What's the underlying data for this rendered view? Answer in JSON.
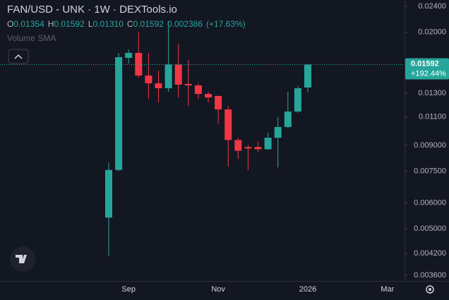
{
  "chart_data": {
    "type": "candlestick",
    "title": "FAN/USD - UNK · 1W · DEXTools.io",
    "legend_labels": [
      "O",
      "H",
      "L",
      "C"
    ],
    "legend_values": [
      "0.01354",
      "0.01592",
      "0.01310",
      "0.01592"
    ],
    "change": "0.002386",
    "change_pct": "(+17.63%)",
    "indicator": "Volume SMA",
    "categories": [
      null,
      null,
      "Sep",
      null,
      null,
      null,
      null,
      null,
      null,
      null,
      null,
      "Nov",
      null,
      null,
      null,
      null,
      null,
      null,
      null,
      null,
      "2026",
      null,
      null,
      null,
      null,
      null,
      null,
      null,
      "Mar"
    ],
    "open": [
      0.00541,
      0.00757,
      0.01669,
      0.01728,
      0.01473,
      0.01395,
      0.01347,
      0.01592,
      0.01388,
      0.01374,
      0.01294,
      0.01275,
      0.0116,
      0.00935,
      0.0089,
      0.0089,
      0.00876,
      0.0095,
      0.01025,
      0.01143,
      0.01354,
      null,
      null,
      null,
      null,
      null,
      null,
      null,
      null
    ],
    "high": [
      0.00798,
      0.01728,
      0.01771,
      0.02,
      0.01728,
      0.01525,
      0.02162,
      0.01843,
      0.01644,
      0.01395,
      0.01314,
      0.01281,
      0.01189,
      0.0095,
      0.00904,
      0.00926,
      0.00984,
      0.011,
      0.01314,
      0.01368,
      0.01592,
      null,
      null,
      null,
      null,
      null,
      null,
      null,
      null
    ],
    "low": [
      0.00414,
      0.0075,
      0.01603,
      0.01451,
      0.0125,
      0.01219,
      0.01314,
      0.01262,
      0.01189,
      0.0125,
      0.01219,
      0.0105,
      0.00775,
      0.00818,
      0.00757,
      0.00858,
      0.00872,
      0.00771,
      0.01015,
      0.01132,
      0.0131,
      null,
      null,
      null,
      null,
      null,
      null,
      null,
      null
    ],
    "close": [
      0.00757,
      0.01677,
      0.01728,
      0.01473,
      0.01395,
      0.01347,
      0.01592,
      0.01381,
      0.01374,
      0.01294,
      0.01262,
      0.0116,
      0.00935,
      0.00867,
      0.00881,
      0.00876,
      0.0095,
      0.01025,
      0.01143,
      0.01347,
      0.01592,
      null,
      null,
      null,
      null,
      null,
      null,
      null,
      null
    ],
    "up_color": "#26a69a",
    "down_color": "#f23645",
    "log_scale": true,
    "ylim": [
      0.00346,
      0.0251
    ],
    "yticks": [
      {
        "value": 0.0036,
        "label": "0.003600"
      },
      {
        "value": 0.0042,
        "label": "0.004200"
      },
      {
        "value": 0.005,
        "label": "0.005000"
      },
      {
        "value": 0.006,
        "label": "0.006000"
      },
      {
        "value": 0.0075,
        "label": "0.007500"
      },
      {
        "value": 0.009,
        "label": "0.009000"
      },
      {
        "value": 0.011,
        "label": "0.01100"
      },
      {
        "value": 0.013,
        "label": "0.01300"
      },
      {
        "value": 0.02,
        "label": "0.02000"
      },
      {
        "value": 0.024,
        "label": "0.02400"
      }
    ],
    "last_price": {
      "value": 0.01592,
      "label": "0.01592"
    },
    "last_change": "+192.44%"
  }
}
